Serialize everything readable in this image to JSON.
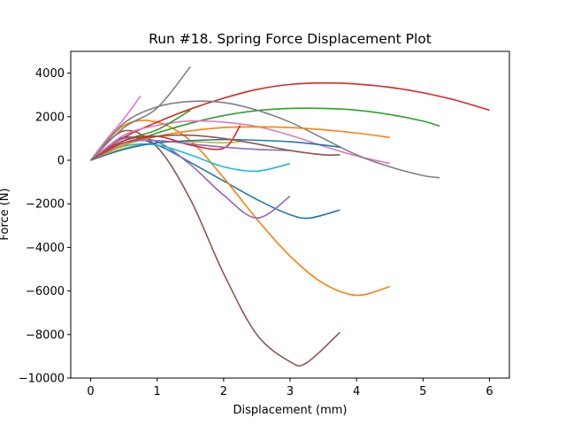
{
  "chart_data": {
    "type": "line",
    "title": "Run #18. Spring Force Displacement Plot",
    "xlabel": "Displacement (mm)",
    "ylabel": "Force (N)",
    "xlim": [
      -0.3,
      6.3
    ],
    "ylim": [
      -10000,
      5000
    ],
    "xticks": [
      0,
      1,
      2,
      3,
      4,
      5,
      6
    ],
    "yticks": [
      -10000,
      -8000,
      -6000,
      -4000,
      -2000,
      0,
      2000,
      4000
    ],
    "grid": false,
    "legend": "none",
    "series": [
      {
        "color": "#1f77b4",
        "x": [
          0,
          0.5,
          1,
          1.5,
          2,
          2.5,
          3,
          3.3,
          3.75
        ],
        "y": [
          0,
          1050,
          700,
          -100,
          -950,
          -1800,
          -2500,
          -2650,
          -2280
        ]
      },
      {
        "color": "#ff7f0e",
        "x": [
          0,
          0.5,
          1,
          1.5,
          2,
          2.5,
          3,
          3.5,
          4,
          4.5
        ],
        "y": [
          0,
          1600,
          1750,
          900,
          -800,
          -2700,
          -4400,
          -5650,
          -6200,
          -5800
        ]
      },
      {
        "color": "#2ca02c",
        "x": [
          0,
          0.5,
          1,
          1.5,
          2,
          2.5,
          3,
          3.5,
          4,
          4.5,
          5,
          5.25
        ],
        "y": [
          0,
          700,
          1250,
          1700,
          2050,
          2280,
          2380,
          2380,
          2300,
          2100,
          1800,
          1570
        ]
      },
      {
        "color": "#d62728",
        "x": [
          0,
          0.5,
          1,
          1.5,
          2,
          2.5,
          3,
          3.5,
          4,
          4.5,
          5,
          5.5,
          6
        ],
        "y": [
          0,
          1050,
          1750,
          2350,
          2850,
          3250,
          3480,
          3550,
          3500,
          3350,
          3100,
          2750,
          2300
        ]
      },
      {
        "color": "#9467bd",
        "x": [
          0,
          0.5,
          1,
          1.5,
          2,
          2.5,
          3
        ],
        "y": [
          0,
          1000,
          850,
          -200,
          -1600,
          -2650,
          -1650
        ]
      },
      {
        "color": "#8c564b",
        "x": [
          0,
          0.5,
          1,
          1.5,
          2,
          2.5,
          3,
          3.25,
          3.75
        ],
        "y": [
          0,
          1350,
          600,
          -1800,
          -5200,
          -8000,
          -9250,
          -9300,
          -7900
        ]
      },
      {
        "color": "#e377c2",
        "x": [
          0,
          0.5,
          1,
          1.5,
          2,
          2.5,
          3,
          3.5,
          4,
          4.5
        ],
        "y": [
          0,
          1150,
          1600,
          1800,
          1750,
          1550,
          1150,
          650,
          200,
          -150
        ]
      },
      {
        "color": "#7f7f7f",
        "x": [
          0,
          0.5,
          1,
          1.5,
          2,
          2.5,
          3,
          3.5,
          4,
          4.5,
          5,
          5.25
        ],
        "y": [
          0,
          1700,
          2450,
          2700,
          2650,
          2300,
          1750,
          1000,
          250,
          -300,
          -700,
          -800
        ]
      },
      {
        "color": "#bcbd22",
        "x": [
          0,
          0.5,
          1,
          1.5,
          2,
          2.25
        ],
        "y": [
          0,
          550,
          800,
          850,
          800,
          850
        ]
      },
      {
        "color": "#17becf",
        "x": [
          0,
          0.5,
          1,
          1.5,
          2,
          2.5,
          3
        ],
        "y": [
          0,
          650,
          700,
          250,
          -300,
          -500,
          -150
        ]
      },
      {
        "color": "#1f77b4",
        "x": [
          0,
          0.5,
          1,
          1.5,
          2,
          2.5,
          3,
          3.5,
          3.75
        ],
        "y": [
          0,
          500,
          800,
          900,
          950,
          920,
          850,
          700,
          600
        ]
      },
      {
        "color": "#ff7f0e",
        "x": [
          0,
          0.5,
          1,
          1.5,
          2,
          2.5,
          3,
          3.5,
          4,
          4.5
        ],
        "y": [
          0,
          700,
          1100,
          1350,
          1500,
          1530,
          1500,
          1400,
          1250,
          1050
        ]
      },
      {
        "color": "#2ca02c",
        "x": [
          0,
          0.5,
          1,
          1.5
        ],
        "y": [
          0,
          900,
          1400,
          2300
        ]
      },
      {
        "color": "#d62728",
        "x": [
          0,
          0.5,
          1,
          1.5,
          2,
          2.25
        ],
        "y": [
          0,
          900,
          1100,
          700,
          550,
          1600
        ]
      },
      {
        "color": "#9467bd",
        "x": [
          0,
          0.5,
          1,
          1.5,
          2,
          2.5,
          3
        ],
        "y": [
          0,
          800,
          900,
          750,
          600,
          500,
          450
        ]
      },
      {
        "color": "#8c564b",
        "x": [
          0,
          0.5,
          1,
          1.5,
          2,
          2.5,
          3,
          3.5,
          3.75
        ],
        "y": [
          0,
          800,
          1100,
          1150,
          1000,
          750,
          450,
          250,
          250
        ]
      },
      {
        "color": "#e377c2",
        "x": [
          0,
          0.25,
          0.5,
          0.75
        ],
        "y": [
          0,
          1000,
          1900,
          2950
        ]
      },
      {
        "color": "#7f7f7f",
        "x": [
          0,
          0.5,
          1,
          1.5
        ],
        "y": [
          0,
          1500,
          2400,
          4300
        ]
      }
    ]
  }
}
